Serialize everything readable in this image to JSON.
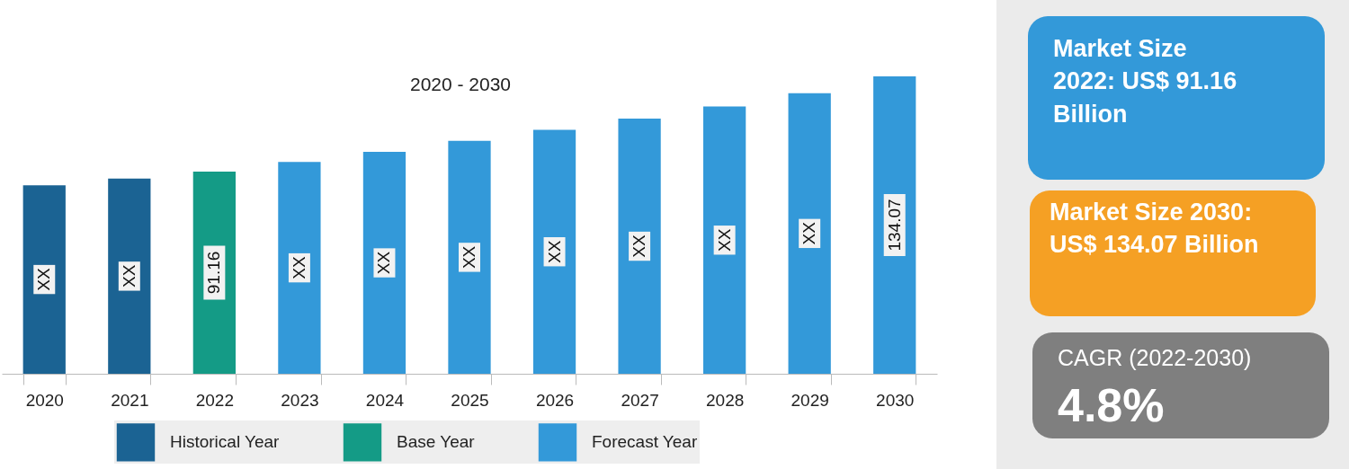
{
  "chart_data": {
    "type": "bar",
    "title": "2020 - 2030",
    "categories": [
      "2020",
      "2021",
      "2022",
      "2023",
      "2024",
      "2025",
      "2026",
      "2027",
      "2028",
      "2029",
      "2030"
    ],
    "series": [
      {
        "name": "Historical Year",
        "color": "#1b6393",
        "values": [
          85,
          88,
          null,
          null,
          null,
          null,
          null,
          null,
          null,
          null,
          null
        ],
        "value_labels": [
          "XX",
          "XX",
          null,
          null,
          null,
          null,
          null,
          null,
          null,
          null,
          null
        ]
      },
      {
        "name": "Base Year",
        "color": "#149b86",
        "values": [
          null,
          null,
          91.16,
          null,
          null,
          null,
          null,
          null,
          null,
          null,
          null
        ],
        "value_labels": [
          null,
          null,
          "91.16",
          null,
          null,
          null,
          null,
          null,
          null,
          null,
          null
        ]
      },
      {
        "name": "Forecast Year",
        "color": "#3399d9",
        "values": [
          null,
          null,
          null,
          95.5,
          100,
          105,
          110,
          115,
          120.5,
          126.5,
          134.07
        ],
        "value_labels": [
          null,
          null,
          null,
          "XX",
          "XX",
          "XX",
          "XX",
          "XX",
          "XX",
          "XX",
          "134.07"
        ]
      }
    ],
    "legend": "bottom",
    "annotations": [
      "Market Size 2022: US$ 91.16 Billion",
      "Market Size 2030: US$ 134.07 Billion",
      "CAGR (2022-2030)",
      "4.8%"
    ]
  }
}
